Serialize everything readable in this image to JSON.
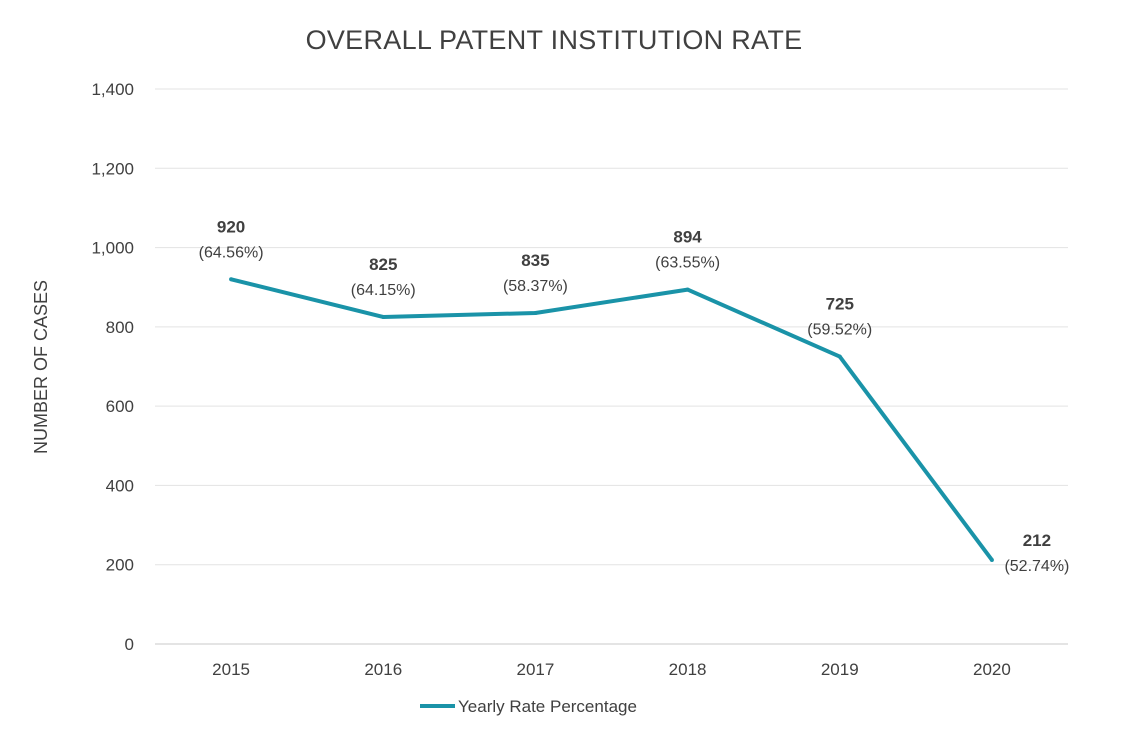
{
  "chart_data": {
    "type": "line",
    "title": "OVERALL PATENT INSTITUTION RATE",
    "xlabel": "",
    "ylabel": "NUMBER OF CASES",
    "categories": [
      "2015",
      "2016",
      "2017",
      "2018",
      "2019",
      "2020"
    ],
    "ylim": [
      0,
      1400
    ],
    "yticks": [
      0,
      200,
      400,
      600,
      800,
      1000,
      1200,
      1400
    ],
    "ytick_labels": [
      "0",
      "200",
      "400",
      "600",
      "800",
      "1,000",
      "1,200",
      "1,400"
    ],
    "series": [
      {
        "name": "Yearly Rate Percentage",
        "color": "#1a93a8",
        "values": [
          920,
          825,
          835,
          894,
          725,
          212
        ],
        "value_labels": [
          "920",
          "825",
          "835",
          "894",
          "725",
          "212"
        ],
        "percent_labels": [
          "(64.56%)",
          "(64.15%)",
          "(58.37%)",
          "(63.55%)",
          "(59.52%)",
          "(52.74%)"
        ]
      }
    ],
    "grid": true,
    "legend": "bottom-center"
  }
}
